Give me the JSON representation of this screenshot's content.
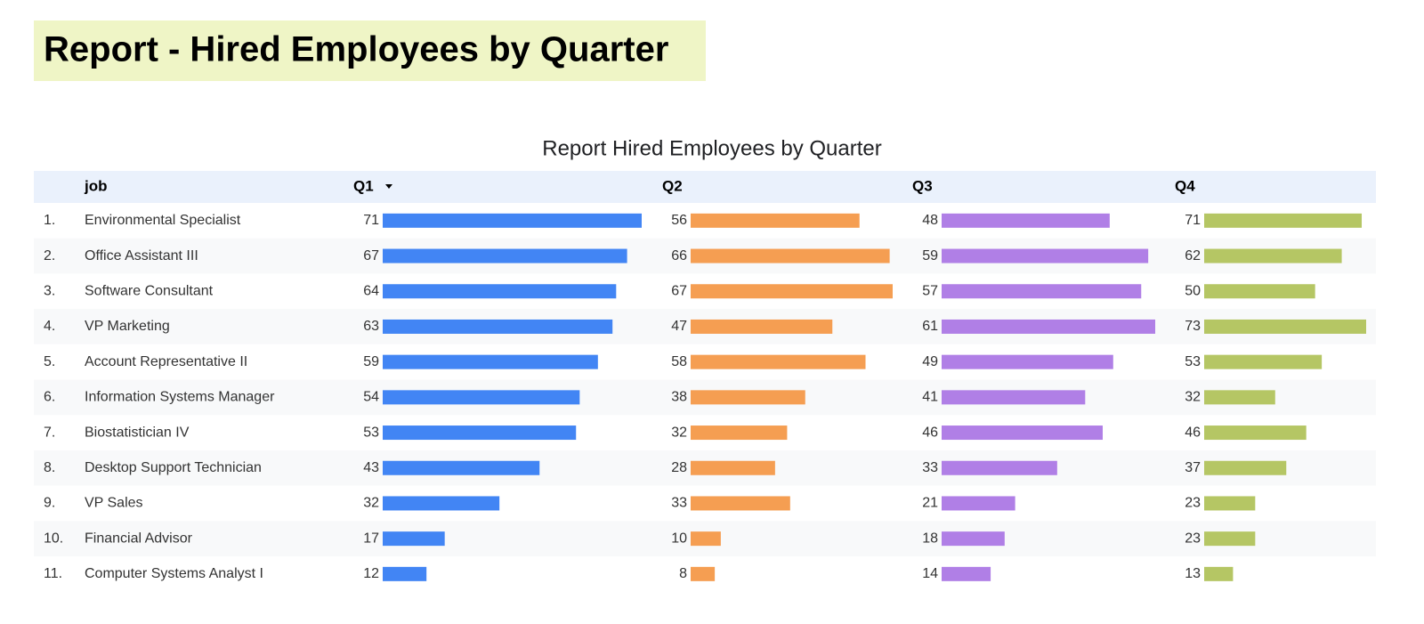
{
  "header": {
    "title": "Report - Hired Employees by Quarter"
  },
  "table": {
    "title": "Report Hired Employees by Quarter",
    "columns": [
      "job",
      "Q1",
      "Q2",
      "Q3",
      "Q4"
    ],
    "colors": [
      "#4285f4",
      "#f59e52",
      "#b07fe6",
      "#b5c664"
    ],
    "rows": [
      {
        "index": "1.",
        "job": "Environmental Specialist",
        "values": [
          71,
          56,
          48,
          71
        ]
      },
      {
        "index": "2.",
        "job": "Office Assistant III",
        "values": [
          67,
          66,
          59,
          62
        ]
      },
      {
        "index": "3.",
        "job": "Software Consultant",
        "values": [
          64,
          67,
          57,
          50
        ]
      },
      {
        "index": "4.",
        "job": "VP Marketing",
        "values": [
          63,
          47,
          61,
          73
        ]
      },
      {
        "index": "5.",
        "job": "Account Representative II",
        "values": [
          59,
          58,
          49,
          53
        ]
      },
      {
        "index": "6.",
        "job": "Information Systems Manager",
        "values": [
          54,
          38,
          41,
          32
        ]
      },
      {
        "index": "7.",
        "job": "Biostatistician IV",
        "values": [
          53,
          32,
          46,
          46
        ]
      },
      {
        "index": "8.",
        "job": "Desktop Support Technician",
        "values": [
          43,
          28,
          33,
          37
        ]
      },
      {
        "index": "9.",
        "job": "VP Sales",
        "values": [
          32,
          33,
          21,
          23
        ]
      },
      {
        "index": "10.",
        "job": "Financial Advisor",
        "values": [
          17,
          10,
          18,
          23
        ]
      },
      {
        "index": "11.",
        "job": "Computer Systems Analyst I",
        "values": [
          12,
          8,
          14,
          13
        ]
      }
    ]
  }
}
